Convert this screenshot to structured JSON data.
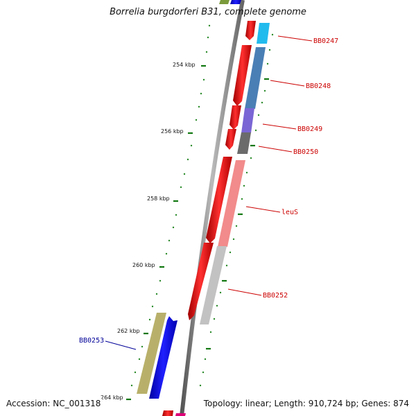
{
  "title": "Borrelia burgdorferi B31, complete genome",
  "footer": {
    "accession": "Accession: NC_001318",
    "summary": "Topology: linear; Length: 910,724 bp; Genes: 874"
  },
  "scale": {
    "ticks": [
      "254 kbp",
      "256 kbp",
      "258 kbp",
      "260 kbp",
      "262 kbp",
      "264 kbp"
    ]
  },
  "genes": [
    {
      "label": "BB0247",
      "color": "#cc0000"
    },
    {
      "label": "BB0248",
      "color": "#cc0000"
    },
    {
      "label": "BB0249",
      "color": "#cc0000"
    },
    {
      "label": "BB0250",
      "color": "#cc0000"
    },
    {
      "label": "leuS",
      "color": "#cc0000"
    },
    {
      "label": "BB0252",
      "color": "#cc0000"
    },
    {
      "label": "BB0253",
      "color": "#000099"
    }
  ],
  "colors": {
    "forward_cds": "#0000ee",
    "reverse_cds": "#ee0000",
    "backbone": "#7a7a7a",
    "tick": "#117711"
  }
}
